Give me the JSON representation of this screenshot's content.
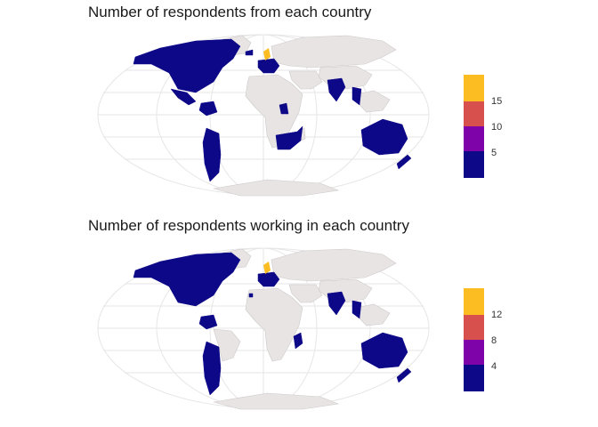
{
  "maps": [
    {
      "title": "Number of respondents from each country",
      "scale_ticks": [
        "5",
        "10",
        "15"
      ],
      "scale_colors": [
        "#0d0887",
        "#7e03a8",
        "#d8504d",
        "#fbbd22"
      ],
      "highlight_color": "#0d0887",
      "top_color": "#fbbd22"
    },
    {
      "title": "Number of respondents working in each country",
      "scale_ticks": [
        "4",
        "8",
        "12"
      ],
      "scale_colors": [
        "#0d0887",
        "#7e03a8",
        "#d8504d",
        "#fbbd22"
      ],
      "highlight_color": "#0d0887",
      "top_color": "#fbbd22"
    }
  ],
  "land_color": "#e8e4e4",
  "graticule_color": "#e6e6e6"
}
